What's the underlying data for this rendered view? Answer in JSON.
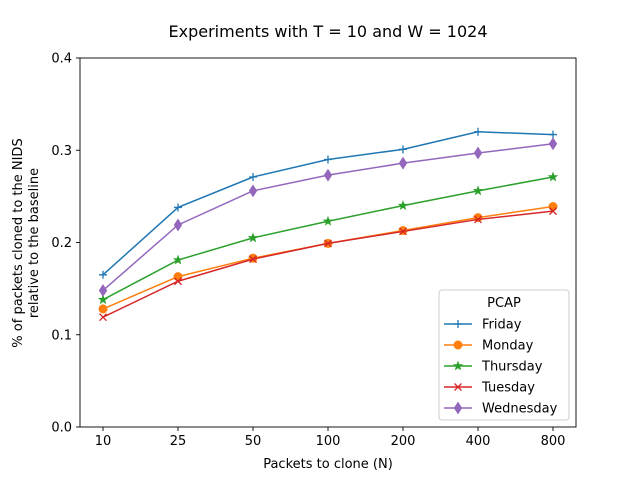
{
  "chart_data": {
    "type": "line",
    "title": "Experiments with T = 10 and W = 1024",
    "xlabel": "Packets to clone (N)",
    "ylabel_lines": [
      "% of packets cloned to the NIDS",
      "relative to the baseline"
    ],
    "categories": [
      "10",
      "25",
      "50",
      "100",
      "200",
      "400",
      "800"
    ],
    "ylim": [
      0,
      0.4
    ],
    "yticks": [
      "0.0",
      "0.1",
      "0.2",
      "0.3",
      "0.4"
    ],
    "grid": false,
    "legend": {
      "title": "PCAP",
      "placement": "lower-right"
    },
    "series": [
      {
        "name": "Friday",
        "color": "#1f77b4",
        "marker": "plus",
        "values": [
          0.165,
          0.238,
          0.271,
          0.29,
          0.301,
          0.32,
          0.317
        ]
      },
      {
        "name": "Monday",
        "color": "#ff7f0e",
        "marker": "circle",
        "values": [
          0.128,
          0.163,
          0.183,
          0.199,
          0.213,
          0.227,
          0.239
        ]
      },
      {
        "name": "Thursday",
        "color": "#2ca02c",
        "marker": "star",
        "values": [
          0.138,
          0.181,
          0.205,
          0.223,
          0.24,
          0.256,
          0.271
        ]
      },
      {
        "name": "Tuesday",
        "color": "#d62728",
        "marker": "x",
        "values": [
          0.119,
          0.158,
          0.182,
          0.199,
          0.212,
          0.225,
          0.234
        ]
      },
      {
        "name": "Wednesday",
        "color": "#9467bd",
        "marker": "diamond",
        "values": [
          0.148,
          0.219,
          0.256,
          0.273,
          0.286,
          0.297,
          0.307
        ]
      }
    ]
  }
}
